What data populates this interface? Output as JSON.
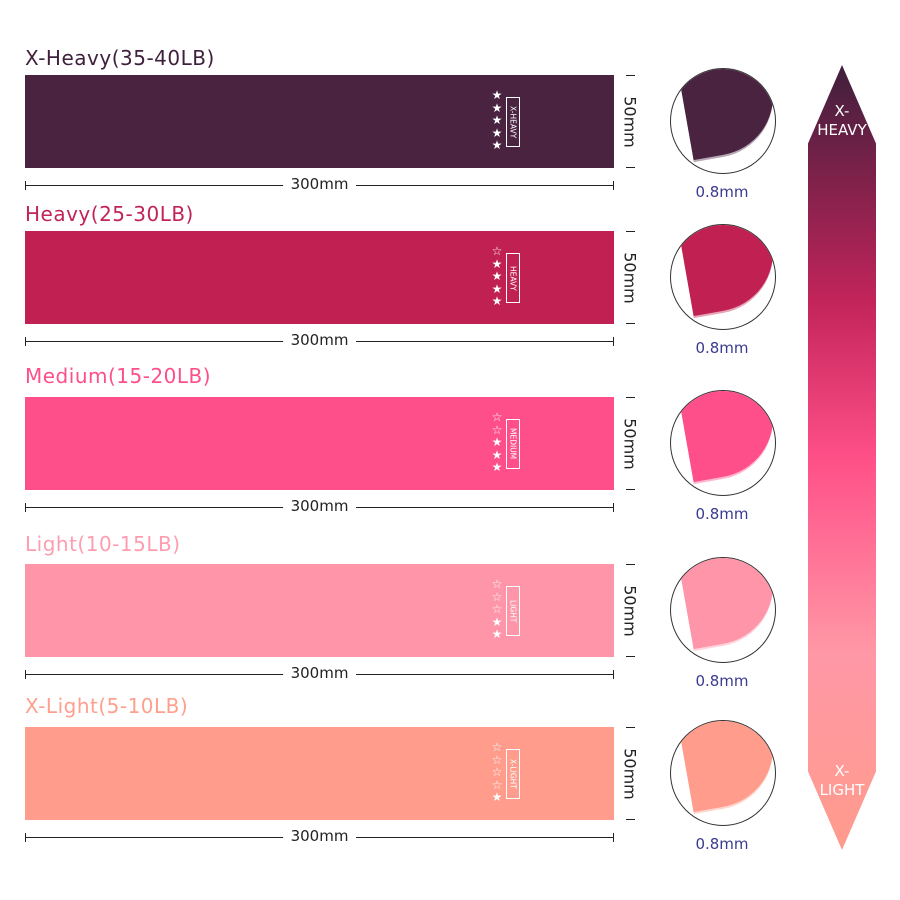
{
  "bands": [
    {
      "title": "X-Heavy(35-40LB)",
      "level": "X-HEAVY",
      "stars": 5,
      "length": "300mm",
      "width": "50mm",
      "thickness": "0.8mm",
      "color": "#4a2341",
      "title_color": "#3f1f3c"
    },
    {
      "title": "Heavy(25-30LB)",
      "level": "HEAVY",
      "stars": 4,
      "length": "300mm",
      "width": "50mm",
      "thickness": "0.8mm",
      "color": "#c12152",
      "title_color": "#c0245a"
    },
    {
      "title": "Medium(15-20LB)",
      "level": "MEDIUM",
      "stars": 3,
      "length": "300mm",
      "width": "50mm",
      "thickness": "0.8mm",
      "color": "#ff4f8a",
      "title_color": "#ff4f88"
    },
    {
      "title": "Light(10-15LB)",
      "level": "LIGHT",
      "stars": 2,
      "length": "300mm",
      "width": "50mm",
      "thickness": "0.8mm",
      "color": "#ff95a9",
      "title_color": "#ff9db0"
    },
    {
      "title": "X-Light(5-10LB)",
      "level": "X-LIGHT",
      "stars": 1,
      "length": "300mm",
      "width": "50mm",
      "thickness": "0.8mm",
      "color": "#ff9c8c",
      "title_color": "#ffa08f"
    }
  ],
  "scale": {
    "top": "X-\nHEAVY",
    "bottom": "X-\nLIGHT"
  }
}
